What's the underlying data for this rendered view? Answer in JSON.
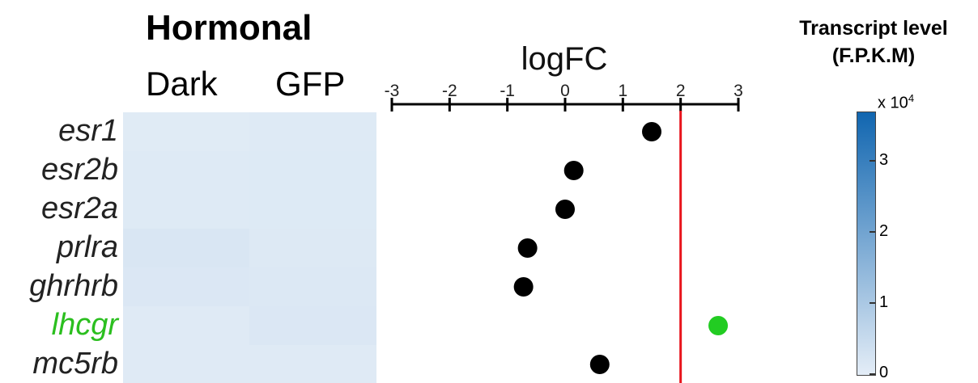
{
  "heatmap": {
    "title": "Hormonal",
    "columns": [
      "Dark",
      "GFP"
    ],
    "cell_colors": [
      [
        "#e0ebf5",
        "#deeaf5"
      ],
      [
        "#deeaf5",
        "#ddeaf5"
      ],
      [
        "#deeaf5",
        "#ddeaf5"
      ],
      [
        "#d9e6f3",
        "#dde9f4"
      ],
      [
        "#dbe7f4",
        "#dce8f4"
      ],
      [
        "#dfeaf5",
        "#dbe7f4"
      ],
      [
        "#dfeaf5",
        "#dfeaf5"
      ]
    ]
  },
  "genes": [
    {
      "name": "esr1",
      "color": "#222222"
    },
    {
      "name": "esr2b",
      "color": "#222222"
    },
    {
      "name": "esr2a",
      "color": "#222222"
    },
    {
      "name": "prlra",
      "color": "#222222"
    },
    {
      "name": "ghrhrb",
      "color": "#222222"
    },
    {
      "name": "lhcgr",
      "color": "#2bbf1f"
    },
    {
      "name": "mc5rb",
      "color": "#222222"
    }
  ],
  "chart_data": {
    "type": "scatter",
    "title": "logFC",
    "xlabel": "",
    "ylabel": "",
    "xlim": [
      -3,
      3
    ],
    "xticks": [
      "-3",
      "-2",
      "-1",
      "0",
      "1",
      "2",
      "3"
    ],
    "reference_line": {
      "x": 2,
      "color": "#e8141c"
    },
    "categories": [
      "esr1",
      "esr2b",
      "esr2a",
      "prlra",
      "ghrhrb",
      "lhcgr",
      "mc5rb"
    ],
    "values": [
      1.5,
      0.15,
      0.0,
      -0.65,
      -0.72,
      2.65,
      0.6
    ],
    "point_colors": [
      "#000000",
      "#000000",
      "#000000",
      "#000000",
      "#000000",
      "#22cc22",
      "#000000"
    ]
  },
  "colorbar": {
    "title_line1": "Transcript level",
    "title_line2": "(F.P.K.M)",
    "scale_prefix": "x 10",
    "scale_exp": "4",
    "min": 0,
    "max": 3.7,
    "ticks": [
      "0",
      "1",
      "2",
      "3"
    ],
    "tick_values": [
      0,
      1,
      2,
      3
    ],
    "color_low": "#e4edf7",
    "color_high": "#1166b0"
  }
}
